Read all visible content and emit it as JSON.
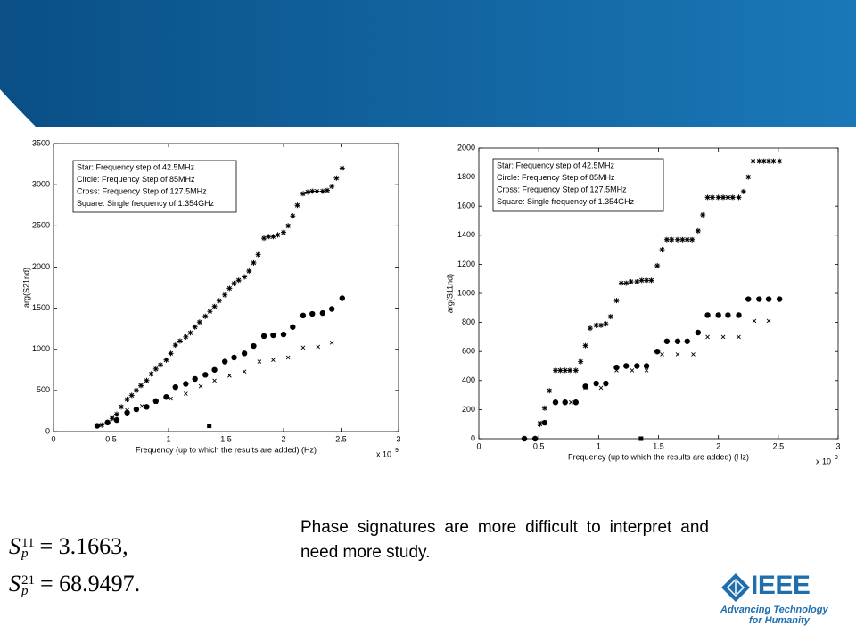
{
  "chart_data": [
    {
      "type": "scatter",
      "ylabel": "arg(S21nd)",
      "xlabel": "Frequency (up to which the results are added) (Hz)",
      "x_scale_label": "x 10",
      "x_scale_exponent": "9",
      "xlim": [
        0,
        3
      ],
      "xticks": [
        0,
        0.5,
        1,
        1.5,
        2,
        2.5,
        3
      ],
      "ylim": [
        0,
        3500
      ],
      "yticks": [
        0,
        500,
        1000,
        1500,
        2000,
        2500,
        3000,
        3500
      ],
      "grid": false,
      "legend": "upper left",
      "series": [
        {
          "name": "Star: Frequency step of 42.5MHz",
          "marker": "star",
          "color": "#000000",
          "x": [
            0.42,
            0.47,
            0.51,
            0.55,
            0.59,
            0.64,
            0.68,
            0.72,
            0.76,
            0.81,
            0.85,
            0.89,
            0.93,
            0.98,
            1.02,
            1.06,
            1.1,
            1.15,
            1.19,
            1.23,
            1.27,
            1.32,
            1.36,
            1.4,
            1.44,
            1.49,
            1.53,
            1.57,
            1.61,
            1.66,
            1.7,
            1.74,
            1.78,
            1.83,
            1.87,
            1.91,
            1.95,
            2.0,
            2.04,
            2.08,
            2.12,
            2.17,
            2.21,
            2.25,
            2.29,
            2.34,
            2.38,
            2.42,
            2.46,
            2.51
          ],
          "values": [
            80,
            110,
            160,
            210,
            300,
            390,
            440,
            500,
            560,
            620,
            700,
            760,
            810,
            870,
            950,
            1050,
            1100,
            1150,
            1200,
            1270,
            1330,
            1400,
            1460,
            1520,
            1590,
            1660,
            1740,
            1800,
            1840,
            1880,
            1950,
            2050,
            2150,
            2350,
            2370,
            2370,
            2390,
            2420,
            2500,
            2620,
            2750,
            2890,
            2910,
            2920,
            2920,
            2920,
            2930,
            2980,
            3080,
            3200
          ]
        },
        {
          "name": "Circle: Frequency Step of 85MHz",
          "marker": "circle",
          "color": "#000000",
          "x": [
            0.38,
            0.47,
            0.55,
            0.64,
            0.72,
            0.81,
            0.89,
            0.98,
            1.06,
            1.15,
            1.23,
            1.32,
            1.4,
            1.49,
            1.57,
            1.66,
            1.74,
            1.83,
            1.91,
            2.0,
            2.08,
            2.17,
            2.25,
            2.34,
            2.42,
            2.51
          ],
          "values": [
            70,
            110,
            140,
            230,
            270,
            300,
            370,
            420,
            540,
            580,
            640,
            690,
            750,
            850,
            900,
            950,
            1040,
            1160,
            1170,
            1180,
            1270,
            1410,
            1430,
            1440,
            1490,
            1620
          ]
        },
        {
          "name": "Cross: Frequency Step of 127.5MHz",
          "marker": "cross",
          "color": "#000000",
          "x": [
            0.38,
            0.51,
            0.64,
            0.77,
            0.89,
            1.02,
            1.15,
            1.28,
            1.4,
            1.53,
            1.66,
            1.79,
            1.91,
            2.04,
            2.17,
            2.3,
            2.42
          ],
          "values": [
            70,
            180,
            260,
            310,
            360,
            400,
            460,
            550,
            620,
            680,
            730,
            850,
            870,
            900,
            1020,
            1030,
            1080
          ]
        },
        {
          "name": "Square: Single frequency of 1.354GHz",
          "marker": "square",
          "color": "#000000",
          "x": [
            1.354
          ],
          "values": [
            70
          ]
        }
      ]
    },
    {
      "type": "scatter",
      "ylabel": "arg(S11nd)",
      "xlabel": "Frequency (up to which the results are added) (Hz)",
      "x_scale_label": "x 10",
      "x_scale_exponent": "9",
      "xlim": [
        0,
        3
      ],
      "xticks": [
        0,
        0.5,
        1,
        1.5,
        2,
        2.5,
        3
      ],
      "ylim": [
        0,
        2000
      ],
      "yticks": [
        0,
        200,
        400,
        600,
        800,
        1000,
        1200,
        1400,
        1600,
        1800,
        2000
      ],
      "grid": false,
      "legend": "upper left",
      "series": [
        {
          "name": "Star: Frequency step of 42.5MHz",
          "marker": "star",
          "color": "#000000",
          "x": [
            0.51,
            0.55,
            0.59,
            0.64,
            0.68,
            0.72,
            0.76,
            0.81,
            0.85,
            0.89,
            0.93,
            0.98,
            1.02,
            1.06,
            1.1,
            1.15,
            1.19,
            1.23,
            1.27,
            1.32,
            1.36,
            1.4,
            1.44,
            1.49,
            1.53,
            1.57,
            1.61,
            1.66,
            1.7,
            1.74,
            1.78,
            1.83,
            1.87,
            1.91,
            1.95,
            2.0,
            2.04,
            2.08,
            2.12,
            2.17,
            2.21,
            2.25,
            2.29,
            2.34,
            2.38,
            2.42,
            2.46,
            2.51
          ],
          "values": [
            100,
            210,
            330,
            470,
            470,
            470,
            470,
            470,
            530,
            640,
            760,
            780,
            780,
            790,
            840,
            950,
            1070,
            1070,
            1080,
            1080,
            1090,
            1090,
            1090,
            1190,
            1300,
            1370,
            1370,
            1370,
            1370,
            1370,
            1370,
            1430,
            1540,
            1660,
            1660,
            1660,
            1660,
            1660,
            1660,
            1660,
            1700,
            1800,
            1910,
            1910,
            1910,
            1910,
            1910,
            1910
          ]
        },
        {
          "name": "Circle: Frequency Step of 85MHz",
          "marker": "circle",
          "color": "#000000",
          "x": [
            0.38,
            0.47,
            0.55,
            0.64,
            0.72,
            0.81,
            0.89,
            0.98,
            1.06,
            1.15,
            1.23,
            1.32,
            1.4,
            1.49,
            1.57,
            1.66,
            1.74,
            1.83,
            1.91,
            2.0,
            2.08,
            2.17,
            2.25,
            2.34,
            2.42,
            2.51
          ],
          "values": [
            0,
            0,
            110,
            250,
            250,
            250,
            360,
            380,
            380,
            490,
            500,
            500,
            500,
            600,
            670,
            670,
            670,
            730,
            850,
            850,
            850,
            850,
            960,
            960,
            960,
            960
          ]
        },
        {
          "name": "Cross: Frequency Step of 127.5MHz",
          "marker": "cross",
          "color": "#000000",
          "x": [
            0.38,
            0.51,
            0.64,
            0.77,
            0.89,
            1.02,
            1.15,
            1.28,
            1.4,
            1.53,
            1.66,
            1.79,
            1.91,
            2.04,
            2.17,
            2.3,
            2.42
          ],
          "values": [
            0,
            110,
            250,
            250,
            350,
            350,
            470,
            470,
            470,
            580,
            580,
            580,
            700,
            700,
            700,
            810,
            810
          ]
        },
        {
          "name": "Square: Single frequency of 1.354GHz",
          "marker": "square",
          "color": "#000000",
          "x": [
            1.354
          ],
          "values": [
            0
          ]
        }
      ]
    }
  ],
  "caption": "Phase signatures are more difficult to interpret and need more study.",
  "equations": [
    {
      "symbol": "S",
      "sub": "p",
      "sup": "11",
      "rest": "= 3.1663,"
    },
    {
      "symbol": "S",
      "sub": "p",
      "sup": "21",
      "rest": "= 68.9497."
    }
  ],
  "logo": {
    "word": "IEEE",
    "tagline_1": "Advancing Technology",
    "tagline_2": "for Humanity"
  }
}
